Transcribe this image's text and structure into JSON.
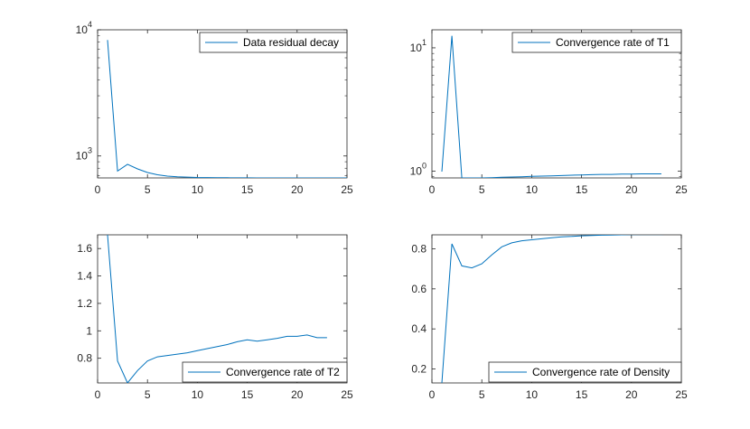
{
  "colors": {
    "line": "#0072BD",
    "axis": "#262626",
    "background": "#ffffff"
  },
  "chart_data": [
    {
      "type": "line",
      "yscale": "log",
      "series": [
        {
          "name": "Data residual decay",
          "x": [
            1,
            2,
            3,
            4,
            5,
            6,
            7,
            8,
            9,
            10,
            11,
            12,
            13,
            14,
            15,
            16,
            17,
            18,
            19,
            20,
            21,
            22,
            23,
            24,
            25
          ],
          "y": [
            8300,
            760,
            860,
            790,
            740,
            710,
            693,
            685,
            680,
            676,
            674,
            673,
            672,
            671,
            671,
            670,
            670,
            670,
            670,
            670,
            670,
            670,
            670,
            670,
            670
          ]
        }
      ],
      "xlim": [
        0,
        25
      ],
      "ylim": [
        670,
        10000
      ],
      "xticks": [
        0,
        5,
        10,
        15,
        20,
        25
      ],
      "xtick_labels": [
        "0",
        "5",
        "10",
        "15",
        "20",
        "25"
      ],
      "yticks": [
        1000,
        10000
      ],
      "ytick_labels": [
        {
          "base": "10",
          "exp": "3"
        },
        {
          "base": "10",
          "exp": "4"
        }
      ],
      "legend_position": "top-right",
      "grid": false
    },
    {
      "type": "line",
      "yscale": "log",
      "series": [
        {
          "name": "Convergence rate of T1",
          "x": [
            1,
            2,
            3,
            4,
            5,
            6,
            7,
            8,
            9,
            10,
            11,
            12,
            13,
            14,
            15,
            16,
            17,
            18,
            19,
            20,
            21,
            22,
            23
          ],
          "y": [
            0.99,
            12.5,
            0.88,
            0.88,
            0.88,
            0.885,
            0.89,
            0.895,
            0.9,
            0.905,
            0.91,
            0.915,
            0.92,
            0.925,
            0.93,
            0.935,
            0.94,
            0.94,
            0.945,
            0.945,
            0.95,
            0.95,
            0.95
          ]
        }
      ],
      "xlim": [
        0,
        25
      ],
      "ylim": [
        0.88,
        14
      ],
      "xticks": [
        0,
        5,
        10,
        15,
        20,
        25
      ],
      "xtick_labels": [
        "0",
        "5",
        "10",
        "15",
        "20",
        "25"
      ],
      "yticks": [
        1,
        10
      ],
      "ytick_labels": [
        {
          "base": "10",
          "exp": "0"
        },
        {
          "base": "10",
          "exp": "1"
        }
      ],
      "legend_position": "top-right",
      "grid": false
    },
    {
      "type": "line",
      "yscale": "linear",
      "series": [
        {
          "name": "Convergence rate of T2",
          "x": [
            1,
            2,
            3,
            4,
            5,
            6,
            7,
            8,
            9,
            10,
            11,
            12,
            13,
            14,
            15,
            16,
            17,
            18,
            19,
            20,
            21,
            22,
            23
          ],
          "y": [
            1.7,
            0.78,
            0.62,
            0.71,
            0.78,
            0.81,
            0.82,
            0.83,
            0.84,
            0.855,
            0.87,
            0.885,
            0.9,
            0.92,
            0.935,
            0.925,
            0.935,
            0.945,
            0.96,
            0.96,
            0.97,
            0.95,
            0.95
          ]
        }
      ],
      "xlim": [
        0,
        25
      ],
      "ylim": [
        0.62,
        1.7
      ],
      "xticks": [
        0,
        5,
        10,
        15,
        20,
        25
      ],
      "xtick_labels": [
        "0",
        "5",
        "10",
        "15",
        "20",
        "25"
      ],
      "yticks": [
        0.8,
        1,
        1.2,
        1.4,
        1.6
      ],
      "ytick_labels": [
        "0.8",
        "1",
        "1.2",
        "1.4",
        "1.6"
      ],
      "legend_position": "bottom-right",
      "grid": false
    },
    {
      "type": "line",
      "yscale": "linear",
      "series": [
        {
          "name": "Convergence rate of Density",
          "x": [
            1,
            2,
            3,
            4,
            5,
            6,
            7,
            8,
            9,
            10,
            11,
            12,
            13,
            14,
            15,
            16,
            17,
            18,
            19,
            20,
            21,
            22,
            23,
            24,
            25
          ],
          "y": [
            0.13,
            0.825,
            0.715,
            0.705,
            0.725,
            0.77,
            0.81,
            0.83,
            0.84,
            0.845,
            0.85,
            0.855,
            0.86,
            0.862,
            0.865,
            0.867,
            0.868,
            0.869,
            0.87,
            0.871,
            0.872,
            0.872,
            0.872,
            0.873,
            0.873
          ]
        }
      ],
      "xlim": [
        0,
        25
      ],
      "ylim": [
        0.13,
        0.87
      ],
      "xticks": [
        0,
        5,
        10,
        15,
        20,
        25
      ],
      "xtick_labels": [
        "0",
        "5",
        "10",
        "15",
        "20",
        "25"
      ],
      "yticks": [
        0.2,
        0.4,
        0.6,
        0.8
      ],
      "ytick_labels": [
        "0.2",
        "0.4",
        "0.6",
        "0.8"
      ],
      "legend_position": "bottom-right",
      "grid": false
    }
  ]
}
